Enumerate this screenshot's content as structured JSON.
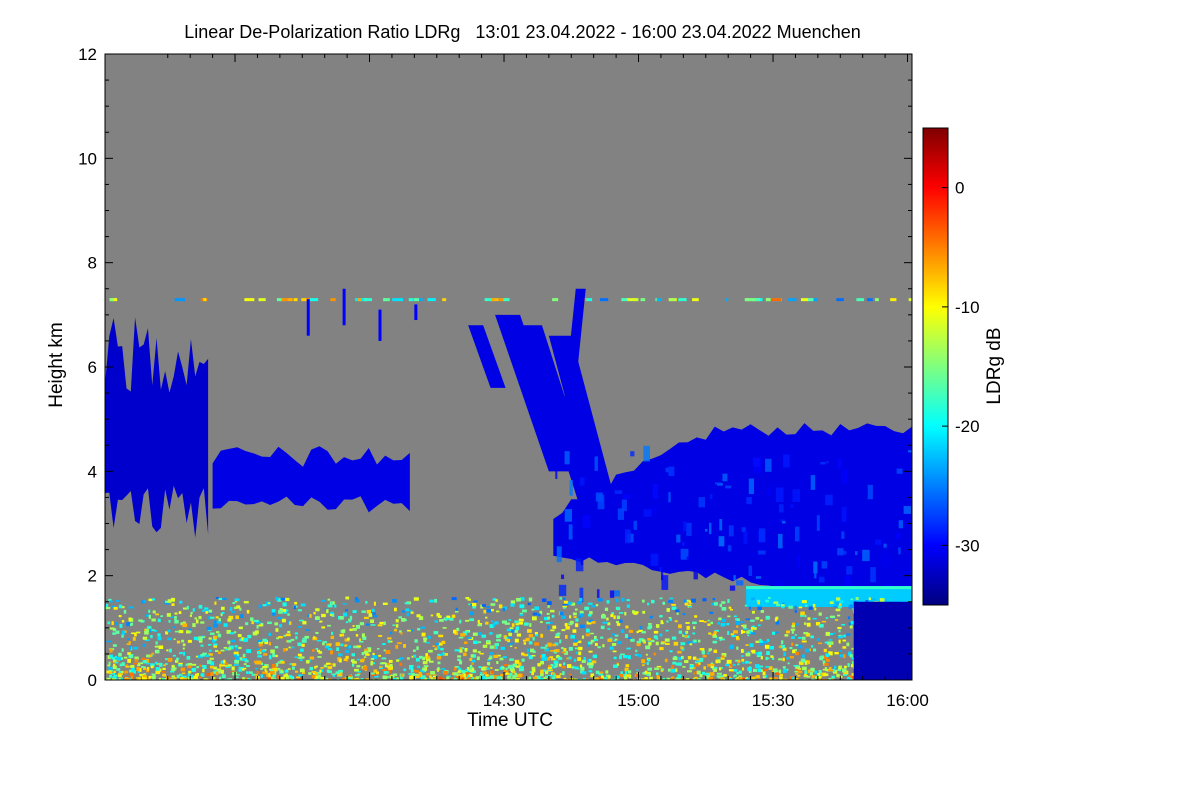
{
  "chart_data": {
    "type": "heatmap",
    "title": "Linear De-Polarization Ratio LDRg   13:01 23.04.2022 - 16:00 23.04.2022 Muenchen",
    "xlabel": "Time UTC",
    "ylabel": "Height km",
    "x_range_minutes_utc": [
      781,
      961
    ],
    "x_ticks": [
      {
        "minutes": 810,
        "label": "13:30"
      },
      {
        "minutes": 840,
        "label": "14:00"
      },
      {
        "minutes": 870,
        "label": "14:30"
      },
      {
        "minutes": 900,
        "label": "15:00"
      },
      {
        "minutes": 930,
        "label": "15:30"
      },
      {
        "minutes": 960,
        "label": "16:00"
      }
    ],
    "ylim_km": [
      0,
      12
    ],
    "y_ticks": [
      0,
      2,
      4,
      6,
      8,
      10,
      12
    ],
    "background": "#828282",
    "colorbar": {
      "label": "LDRg dB",
      "range_db": [
        -35,
        5
      ],
      "ticks": [
        0,
        -10,
        -20,
        -30
      ],
      "colors": [
        "#00007f",
        "#0000ff",
        "#007fff",
        "#00ffff",
        "#7fff7f",
        "#ffff00",
        "#ff7f00",
        "#ff0000",
        "#7f0000"
      ]
    },
    "features": [
      {
        "name": "cloud layer near 7.3 km (sparse)",
        "time_range": [
          781,
          961
        ],
        "height_km": [
          7.2,
          7.4
        ],
        "ldr_db": -15
      },
      {
        "name": "thin cirrus streaks",
        "time_range": [
          826,
          852
        ],
        "height_km": [
          6.5,
          7.6
        ],
        "ldr_db": -30
      },
      {
        "name": "early cloud",
        "time_range": [
          781,
          804
        ],
        "height_km": [
          2.7,
          7.0
        ],
        "ldr_db": -32
      },
      {
        "name": "cloud patches",
        "time_range": [
          805,
          849
        ],
        "height_km": [
          3.2,
          4.5
        ],
        "ldr_db": -31
      },
      {
        "name": "fall streaks",
        "time_range": [
          862,
          891
        ],
        "height_km": [
          2.3,
          7.8
        ],
        "ldr_db": -31
      },
      {
        "name": "main cloud",
        "time_range": [
          881,
          961
        ],
        "height_km": [
          1.5,
          5.0
        ],
        "ldr_db": -31
      },
      {
        "name": "cloud base",
        "time_range": [
          924,
          961
        ],
        "height_km": [
          1.4,
          1.8
        ],
        "ldr_db": -22
      },
      {
        "name": "boundary layer aerosol",
        "time_range": [
          781,
          961
        ],
        "height_km": [
          0.0,
          1.6
        ],
        "ldr_db": -12
      },
      {
        "name": "precipitation",
        "time_range": [
          948,
          961
        ],
        "height_km": [
          0.0,
          1.5
        ],
        "ldr_db": -33
      }
    ]
  }
}
